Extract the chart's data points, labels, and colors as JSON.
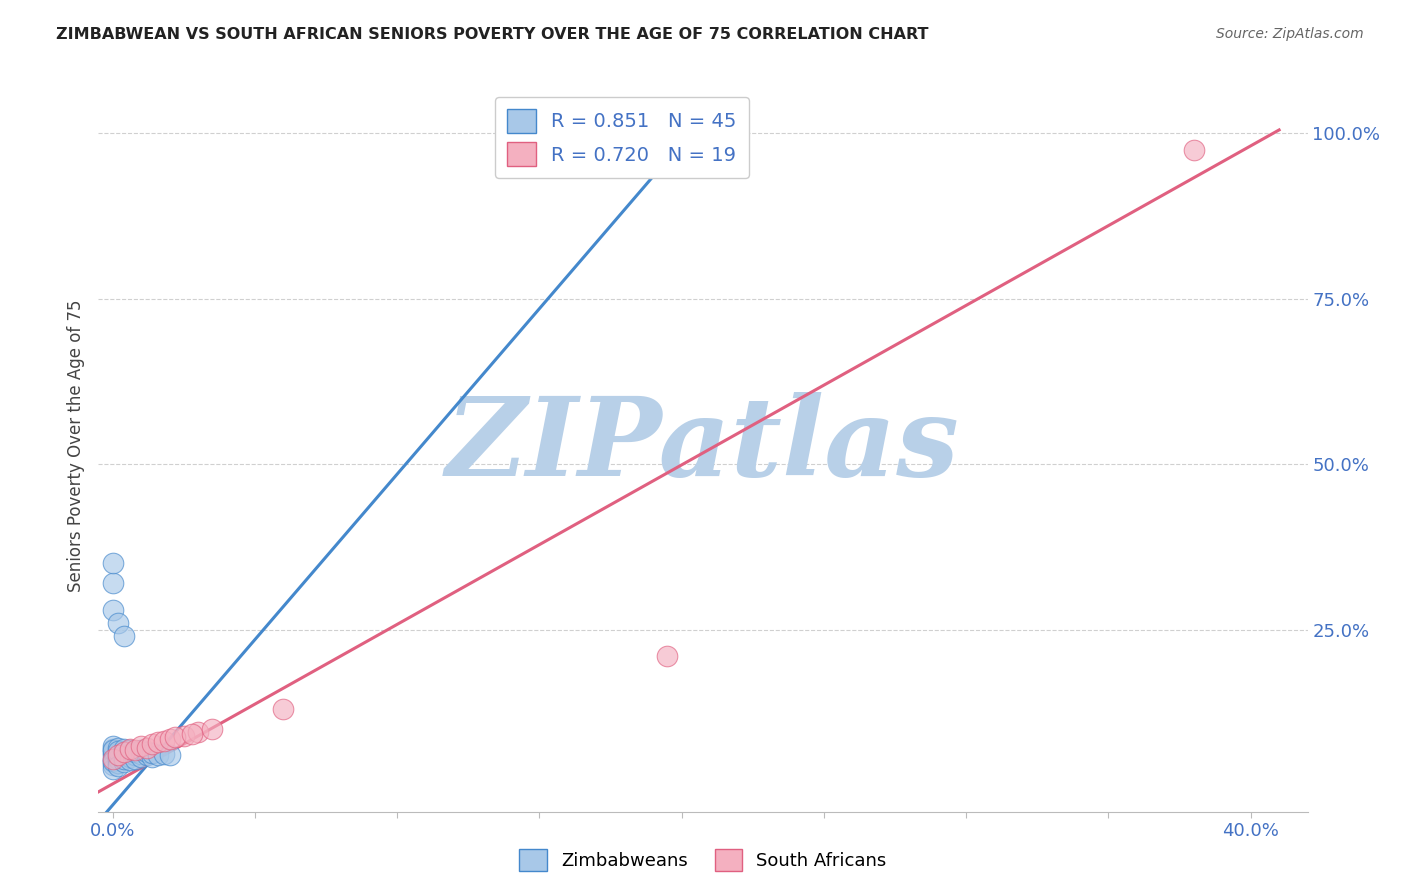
{
  "title": "ZIMBABWEAN VS SOUTH AFRICAN SENIORS POVERTY OVER THE AGE OF 75 CORRELATION CHART",
  "source": "Source: ZipAtlas.com",
  "ylabel": "Seniors Poverty Over the Age of 75",
  "legend_blue_R": "0.851",
  "legend_blue_N": "45",
  "legend_pink_R": "0.720",
  "legend_pink_N": "19",
  "blue_color": "#a8c8e8",
  "pink_color": "#f4b0c0",
  "blue_line_color": "#4488cc",
  "pink_line_color": "#e06080",
  "watermark": "ZIPatlas",
  "watermark_color_zip": "#b8d0e8",
  "watermark_color_atlas": "#c8d8e8",
  "xlim": [
    -0.005,
    0.42
  ],
  "ylim": [
    -0.025,
    1.08
  ],
  "x_tick_positions": [
    0.0,
    0.05,
    0.1,
    0.15,
    0.2,
    0.25,
    0.3,
    0.35,
    0.4
  ],
  "y_tick_positions": [
    0.25,
    0.5,
    0.75,
    1.0
  ],
  "y_tick_labels": [
    "25.0%",
    "50.0%",
    "75.0%",
    "100.0%"
  ],
  "tick_color": "#4472c4",
  "background_color": "#ffffff",
  "grid_color": "#d0d0d0",
  "blue_points_x": [
    0.0,
    0.0,
    0.0,
    0.0,
    0.0,
    0.0,
    0.0,
    0.0,
    0.0,
    0.0,
    0.002,
    0.002,
    0.002,
    0.002,
    0.002,
    0.002,
    0.002,
    0.004,
    0.004,
    0.004,
    0.004,
    0.004,
    0.006,
    0.006,
    0.006,
    0.006,
    0.008,
    0.008,
    0.008,
    0.01,
    0.01,
    0.01,
    0.012,
    0.012,
    0.014,
    0.014,
    0.016,
    0.018,
    0.02,
    0.0,
    0.0,
    0.002,
    0.004,
    0.0,
    0.195
  ],
  "blue_points_y": [
    0.055,
    0.06,
    0.065,
    0.05,
    0.07,
    0.045,
    0.075,
    0.04,
    0.068,
    0.052,
    0.058,
    0.063,
    0.048,
    0.072,
    0.055,
    0.067,
    0.044,
    0.06,
    0.065,
    0.05,
    0.07,
    0.055,
    0.058,
    0.062,
    0.068,
    0.053,
    0.06,
    0.055,
    0.065,
    0.062,
    0.057,
    0.068,
    0.06,
    0.065,
    0.058,
    0.063,
    0.06,
    0.062,
    0.06,
    0.28,
    0.32,
    0.26,
    0.24,
    0.35,
    0.98
  ],
  "pink_points_x": [
    0.0,
    0.002,
    0.004,
    0.006,
    0.008,
    0.01,
    0.012,
    0.014,
    0.016,
    0.018,
    0.02,
    0.025,
    0.03,
    0.035,
    0.022,
    0.028,
    0.195,
    0.06,
    0.38
  ],
  "pink_points_y": [
    0.055,
    0.06,
    0.065,
    0.07,
    0.068,
    0.075,
    0.072,
    0.078,
    0.08,
    0.082,
    0.085,
    0.09,
    0.095,
    0.1,
    0.088,
    0.092,
    0.21,
    0.13,
    0.975
  ],
  "blue_line_x": [
    -0.005,
    0.205
  ],
  "blue_line_y": [
    -0.04,
    1.01
  ],
  "pink_line_x": [
    -0.005,
    0.41
  ],
  "pink_line_y": [
    0.005,
    1.005
  ]
}
